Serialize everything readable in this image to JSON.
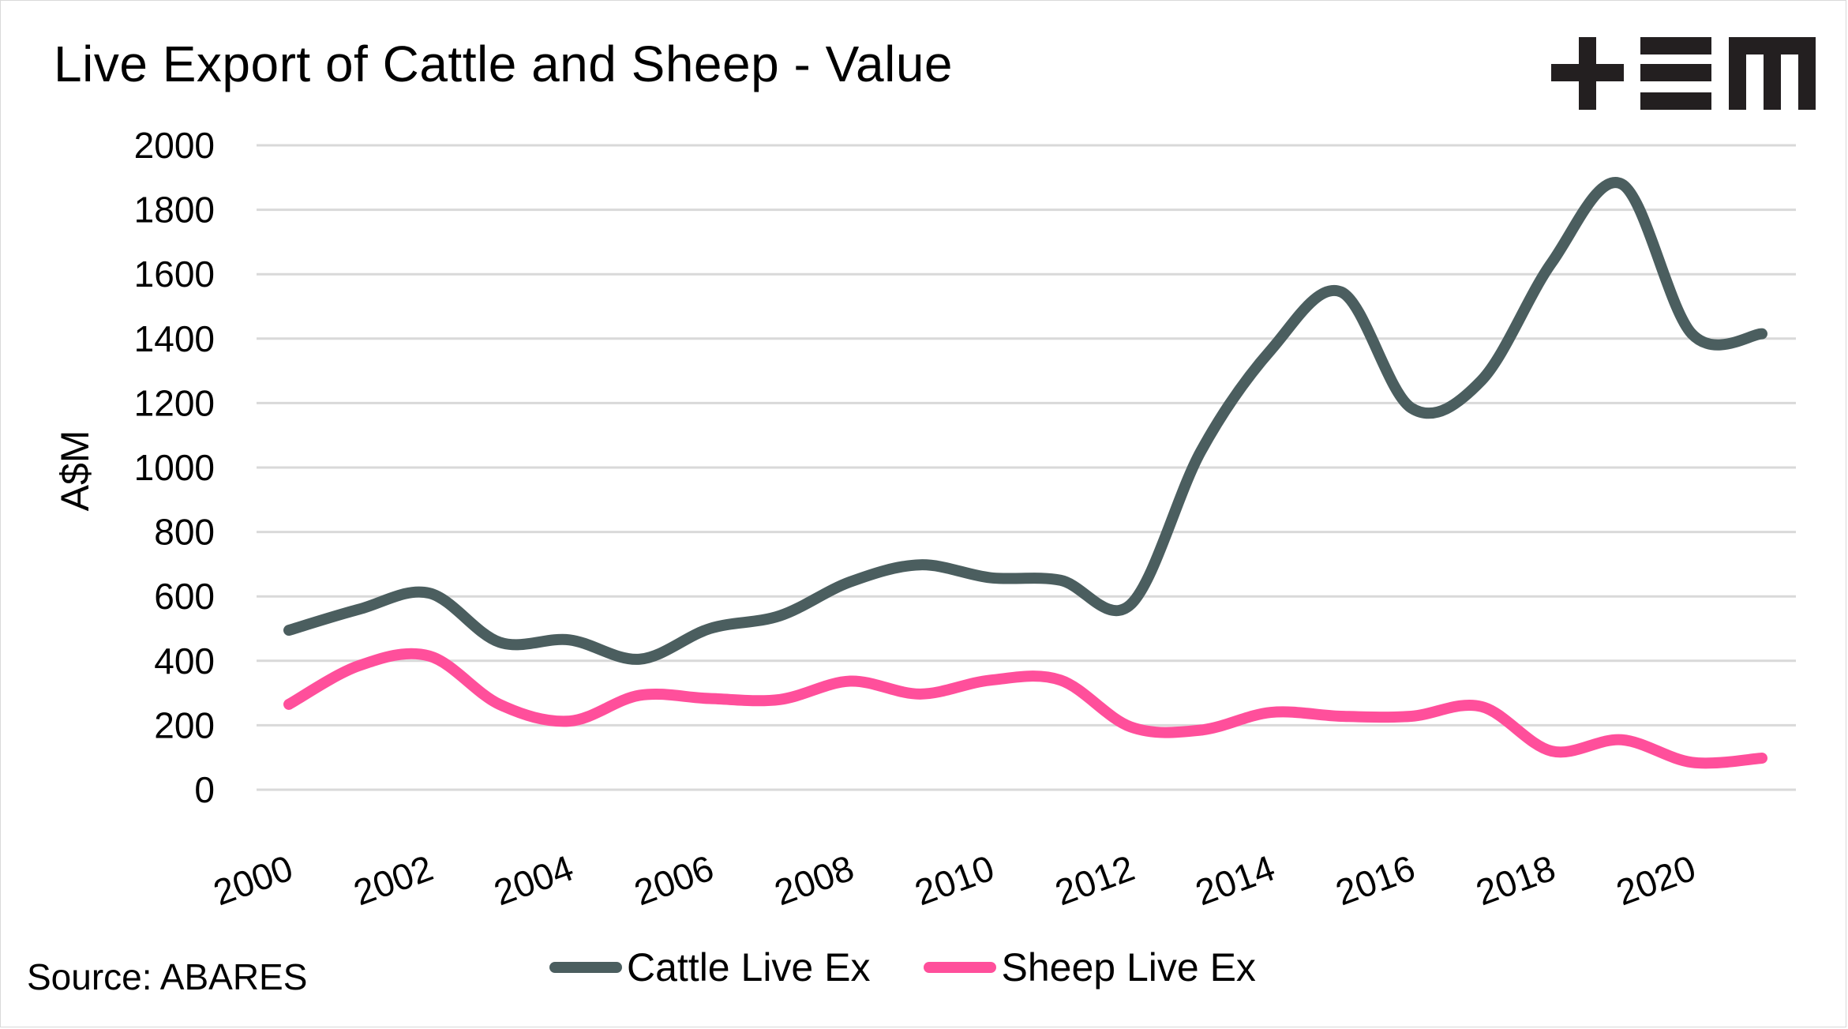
{
  "title": "Live Export of Cattle and Sheep - Value",
  "logo": {
    "text": "+EM",
    "icon": "brand-logo-icon"
  },
  "source": "Source: ABARES",
  "colors": {
    "cattle": "#4b5e5f",
    "sheep": "#ff4f9b",
    "grid": "#d9d9d9",
    "text": "#000000"
  },
  "legend": [
    {
      "name": "Cattle Live Ex",
      "color": "#4b5e5f"
    },
    {
      "name": "Sheep Live Ex",
      "color": "#ff4f9b"
    }
  ],
  "chart_data": {
    "type": "line",
    "title": "Live Export of Cattle and Sheep - Value",
    "xlabel": "",
    "ylabel": "A$M",
    "ylim": [
      0,
      2000
    ],
    "yticks": [
      0,
      200,
      400,
      600,
      800,
      1000,
      1200,
      1400,
      1600,
      1800,
      2000
    ],
    "xticks": [
      "2000",
      "2002",
      "2004",
      "2006",
      "2008",
      "2010",
      "2012",
      "2014",
      "2016",
      "2018",
      "2020"
    ],
    "x": [
      2000,
      2001,
      2002,
      2003,
      2004,
      2005,
      2006,
      2007,
      2008,
      2009,
      2010,
      2011,
      2012,
      2013,
      2014,
      2015,
      2016,
      2017,
      2018,
      2019,
      2020,
      2021
    ],
    "grid": true,
    "smooth": true,
    "legend_position": "bottom",
    "series": [
      {
        "name": "Cattle Live Ex",
        "color": "#4b5e5f",
        "values": [
          495,
          560,
          610,
          458,
          465,
          405,
          500,
          540,
          645,
          698,
          658,
          650,
          575,
          1050,
          1365,
          1545,
          1185,
          1270,
          1635,
          1880,
          1415,
          1415
        ]
      },
      {
        "name": "Sheep Live Ex",
        "color": "#ff4f9b",
        "values": [
          265,
          385,
          415,
          265,
          213,
          293,
          283,
          280,
          337,
          297,
          340,
          340,
          195,
          185,
          240,
          228,
          228,
          258,
          120,
          155,
          85,
          98
        ]
      }
    ]
  }
}
